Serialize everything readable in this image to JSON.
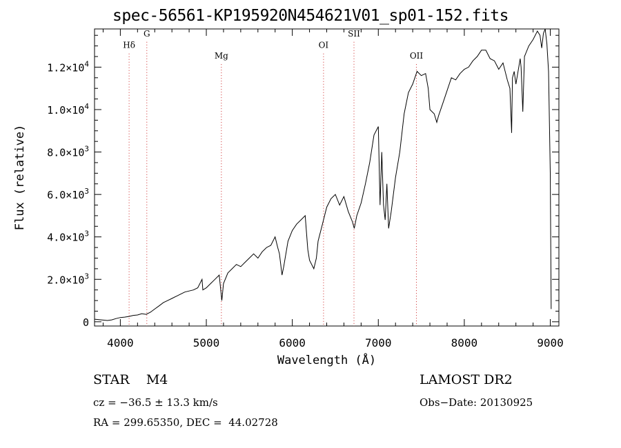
{
  "chart_data": {
    "type": "line",
    "title": "spec-56561-KP195920N454621V01_sp01-152.fits",
    "xlabel": "Wavelength (Å)",
    "ylabel": "Flux (relative)",
    "xlim": [
      3700,
      9100
    ],
    "ylim": [
      -200,
      13800
    ],
    "x_ticks": [
      4000,
      5000,
      6000,
      7000,
      8000,
      9000
    ],
    "y_ticks": [
      {
        "value": 0,
        "mantissa": "0",
        "exponent": ""
      },
      {
        "value": 2000,
        "mantissa": "2.0×10",
        "exponent": "3"
      },
      {
        "value": 4000,
        "mantissa": "4.0×10",
        "exponent": "3"
      },
      {
        "value": 6000,
        "mantissa": "6.0×10",
        "exponent": "3"
      },
      {
        "value": 8000,
        "mantissa": "8.0×10",
        "exponent": "3"
      },
      {
        "value": 10000,
        "mantissa": "1.0×10",
        "exponent": "4"
      },
      {
        "value": 12000,
        "mantissa": "1.2×10",
        "exponent": "4"
      }
    ],
    "lines": [
      {
        "label": "Hδ",
        "x": 4102,
        "label_y": 12900
      },
      {
        "label": "G",
        "x": 4308,
        "label_y": 13450
      },
      {
        "label": "Mg",
        "x": 5175,
        "label_y": 12400
      },
      {
        "label": "OI",
        "x": 6363,
        "label_y": 12900
      },
      {
        "label": "SII",
        "x": 6717,
        "label_y": 13450
      },
      {
        "label": "OII",
        "x": 7443,
        "label_y": 12400
      }
    ],
    "spectrum": {
      "x": [
        3700,
        3750,
        3800,
        3850,
        3900,
        3950,
        4000,
        4050,
        4100,
        4150,
        4200,
        4250,
        4300,
        4350,
        4400,
        4450,
        4500,
        4550,
        4600,
        4650,
        4700,
        4750,
        4800,
        4850,
        4900,
        4950,
        4960,
        5000,
        5050,
        5100,
        5150,
        5180,
        5200,
        5250,
        5300,
        5350,
        5400,
        5450,
        5500,
        5550,
        5600,
        5650,
        5700,
        5750,
        5800,
        5830,
        5850,
        5880,
        5900,
        5950,
        6000,
        6050,
        6100,
        6150,
        6180,
        6200,
        6250,
        6280,
        6300,
        6350,
        6400,
        6450,
        6500,
        6550,
        6600,
        6650,
        6700,
        6720,
        6750,
        6800,
        6850,
        6900,
        6950,
        7000,
        7020,
        7040,
        7060,
        7080,
        7100,
        7120,
        7150,
        7200,
        7250,
        7300,
        7350,
        7400,
        7450,
        7500,
        7550,
        7580,
        7600,
        7650,
        7680,
        7700,
        7750,
        7800,
        7850,
        7900,
        7950,
        8000,
        8050,
        8100,
        8150,
        8200,
        8250,
        8300,
        8350,
        8400,
        8450,
        8500,
        8530,
        8550,
        8560,
        8580,
        8600,
        8650,
        8660,
        8680,
        8700,
        8750,
        8800,
        8850,
        8880,
        8900,
        8920,
        8940,
        8960,
        8980,
        9000,
        9010
      ],
      "y": [
        120,
        100,
        80,
        60,
        90,
        150,
        200,
        220,
        250,
        300,
        320,
        380,
        350,
        450,
        600,
        750,
        900,
        1000,
        1100,
        1200,
        1300,
        1400,
        1450,
        1500,
        1600,
        2000,
        1500,
        1600,
        1800,
        2000,
        2200,
        1000,
        1800,
        2300,
        2500,
        2700,
        2600,
        2800,
        3000,
        3200,
        3000,
        3300,
        3500,
        3600,
        4000,
        3500,
        3200,
        2200,
        2600,
        3800,
        4300,
        4600,
        4800,
        5000,
        3400,
        2900,
        2500,
        3000,
        3800,
        4600,
        5400,
        5800,
        6000,
        5500,
        5900,
        5200,
        4700,
        4400,
        5000,
        5600,
        6500,
        7500,
        8800,
        9200,
        5500,
        8000,
        5500,
        4800,
        6500,
        4400,
        5200,
        6800,
        8000,
        9800,
        10800,
        11200,
        11800,
        11600,
        11700,
        11000,
        10000,
        9800,
        9400,
        9700,
        10300,
        10900,
        11500,
        11400,
        11700,
        11900,
        12000,
        12300,
        12500,
        12800,
        12800,
        12400,
        12300,
        11900,
        12200,
        11400,
        11000,
        8900,
        11500,
        11800,
        11200,
        12400,
        12000,
        9900,
        12500,
        13000,
        13300,
        13700,
        13500,
        12900,
        13600,
        13800,
        13100,
        11800,
        7000,
        600
      ]
    }
  },
  "footer": {
    "object_class": "STAR    M4",
    "survey": "LAMOST DR2",
    "velocity": "cz = −36.5 ± 13.3 km/s",
    "obs_date": "Obs−Date: 20130925",
    "coords": "RA = 299.65350, DEC =  44.02728"
  }
}
